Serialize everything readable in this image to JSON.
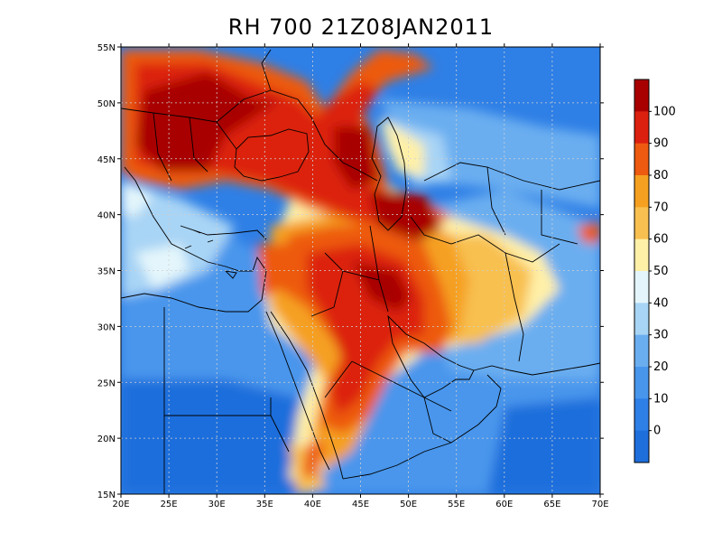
{
  "title": "RH 700 21Z08JAN2011",
  "map": {
    "lon_range": [
      20,
      70
    ],
    "lat_range": [
      15,
      55
    ],
    "lon_ticks": [
      "20E",
      "25E",
      "30E",
      "35E",
      "40E",
      "45E",
      "50E",
      "55E",
      "60E",
      "65E",
      "70E"
    ],
    "lat_ticks": [
      "55N",
      "50N",
      "45N",
      "40N",
      "35N",
      "30N",
      "25N",
      "20N",
      "15N"
    ],
    "grid": true,
    "grid_style": "dotted",
    "field_colors": {
      "lt0": "#1e6edc",
      "0_10": "#2e7fe6",
      "10_20": "#4896ec",
      "20_30": "#6aaef0",
      "30_40": "#a8d4f5",
      "40_50": "#e4f6fb",
      "50_60": "#fff0a8",
      "60_70": "#f8c050",
      "70_80": "#f5a020",
      "80_90": "#ed5a10",
      "90_100": "#dc2010",
      "gt100": "#a80000"
    }
  },
  "colorbar": {
    "labels": [
      "100",
      "90",
      "80",
      "70",
      "60",
      "50",
      "40",
      "30",
      "20",
      "10",
      "0"
    ],
    "colors": [
      "#a80000",
      "#dc2010",
      "#ed5a10",
      "#f5a020",
      "#f8c050",
      "#fff0a8",
      "#e4f6fb",
      "#a8d4f5",
      "#6aaef0",
      "#4896ec",
      "#2e7fe6",
      "#1e6edc"
    ]
  }
}
